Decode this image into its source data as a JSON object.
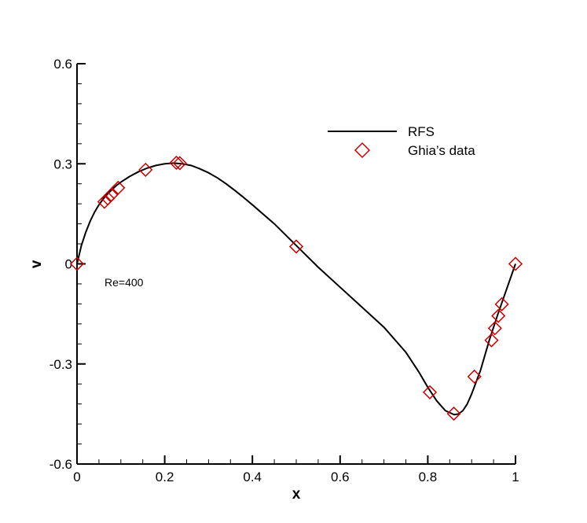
{
  "chart_data": {
    "type": "scatter",
    "xlabel": "x",
    "ylabel": "v",
    "xlim": [
      0,
      1
    ],
    "ylim": [
      -0.6,
      0.6
    ],
    "x_ticks": [
      {
        "value": 0,
        "label": "0"
      },
      {
        "value": 0.2,
        "label": "0.2"
      },
      {
        "value": 0.4,
        "label": "0.4"
      },
      {
        "value": 0.6,
        "label": "0.6"
      },
      {
        "value": 0.8,
        "label": "0.8"
      },
      {
        "value": 1,
        "label": "1"
      }
    ],
    "y_ticks": [
      {
        "value": 0.6,
        "label": "0.6"
      },
      {
        "value": 0.3,
        "label": "0.3"
      },
      {
        "value": 0,
        "label": "0"
      },
      {
        "value": -0.3,
        "label": "-0.3"
      },
      {
        "value": -0.6,
        "label": "-0.6"
      }
    ],
    "x_minor_step": 0.05,
    "y_minor_step": 0.06,
    "grid": false,
    "legend_position": "top-right",
    "annotation": "Re=400",
    "series": [
      {
        "name": "RFS",
        "kind": "line",
        "color": "#000000",
        "x": [
          0,
          0.01,
          0.02,
          0.03,
          0.04,
          0.05,
          0.06,
          0.07,
          0.08,
          0.09,
          0.1,
          0.12,
          0.14,
          0.16,
          0.18,
          0.2,
          0.22,
          0.24,
          0.26,
          0.28,
          0.3,
          0.32,
          0.34,
          0.36,
          0.38,
          0.4,
          0.45,
          0.5,
          0.55,
          0.6,
          0.65,
          0.7,
          0.75,
          0.78,
          0.8,
          0.82,
          0.84,
          0.86,
          0.87,
          0.88,
          0.89,
          0.9,
          0.92,
          0.94,
          0.96,
          0.98,
          1.0
        ],
        "y": [
          0,
          0.055,
          0.095,
          0.128,
          0.155,
          0.177,
          0.195,
          0.21,
          0.223,
          0.235,
          0.245,
          0.262,
          0.276,
          0.287,
          0.295,
          0.3,
          0.302,
          0.3,
          0.295,
          0.285,
          0.273,
          0.258,
          0.24,
          0.22,
          0.199,
          0.177,
          0.12,
          0.055,
          -0.01,
          -0.07,
          -0.13,
          -0.19,
          -0.265,
          -0.325,
          -0.37,
          -0.41,
          -0.44,
          -0.452,
          -0.45,
          -0.44,
          -0.42,
          -0.39,
          -0.32,
          -0.23,
          -0.15,
          -0.075,
          0
        ]
      },
      {
        "name": "Ghia’s data",
        "kind": "scatter",
        "marker": "diamond",
        "color": "#cc0000",
        "x": [
          0.0,
          0.0625,
          0.0703,
          0.0781,
          0.0938,
          0.1563,
          0.2266,
          0.2344,
          0.5,
          0.8047,
          0.8594,
          0.9063,
          0.9453,
          0.9531,
          0.9609,
          0.9688,
          1.0
        ],
        "y": [
          0.0,
          0.186,
          0.196,
          0.207,
          0.228,
          0.282,
          0.303,
          0.302,
          0.052,
          -0.385,
          -0.449,
          -0.338,
          -0.229,
          -0.193,
          -0.156,
          -0.121,
          0.0
        ]
      }
    ]
  }
}
